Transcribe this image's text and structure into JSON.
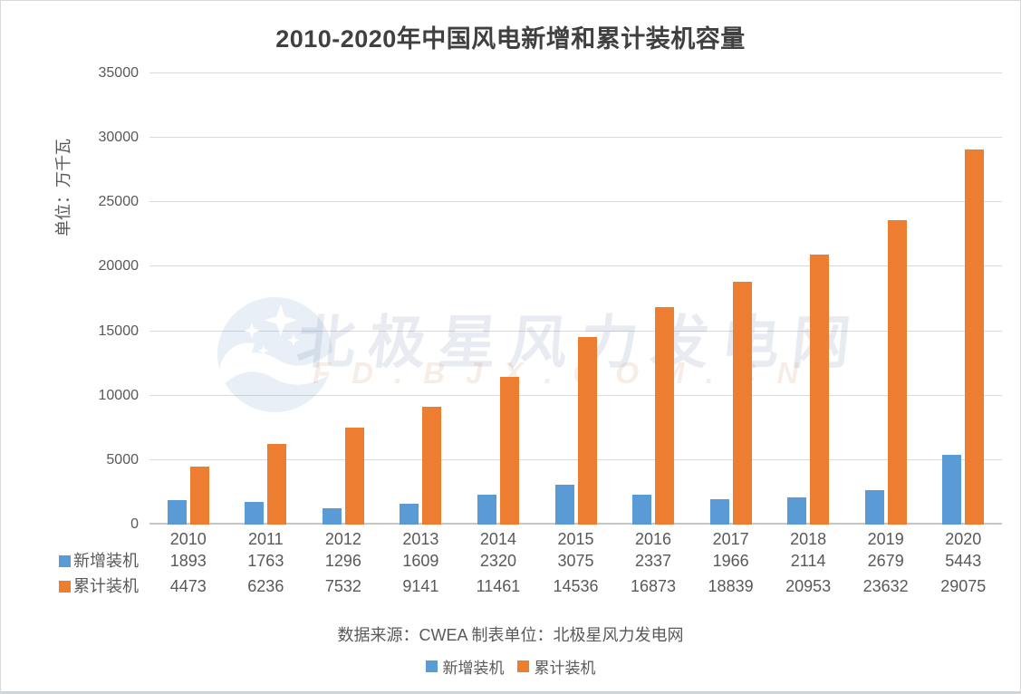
{
  "chart_data": {
    "type": "bar",
    "title": "2010-2020年中国风电新增和累计装机容量",
    "ylabel": "单位：万千瓦",
    "xlabel": "",
    "categories": [
      "2010",
      "2011",
      "2012",
      "2013",
      "2014",
      "2015",
      "2016",
      "2017",
      "2018",
      "2019",
      "2020"
    ],
    "series": [
      {
        "id": "new-installed",
        "name": "新增装机",
        "color": "#5B9BD5",
        "values": [
          1893,
          1763,
          1296,
          1609,
          2320,
          3075,
          2337,
          1966,
          2114,
          2679,
          5443
        ]
      },
      {
        "id": "cumulative-installed",
        "name": "累计装机",
        "color": "#ED7D31",
        "values": [
          4473,
          6236,
          7532,
          9141,
          11461,
          14536,
          16873,
          18839,
          20953,
          23632,
          29075
        ]
      }
    ],
    "ylim": [
      0,
      35000
    ],
    "yticks": [
      0,
      5000,
      10000,
      15000,
      20000,
      25000,
      30000,
      35000
    ],
    "grid": true,
    "legend_position": "bottom",
    "show_data_table": true
  },
  "footer": {
    "source": "数据来源：CWEA 制表单位：北极星风力发电网"
  },
  "watermark": {
    "brand": "北极星风力发电网",
    "domain": "FD.BJX.COM.CN",
    "icon": "bjx-moon-stars-logo"
  },
  "theme": {
    "title_color": "#404040",
    "axis_text_color": "#595959",
    "gridline_color": "#D9D9D9",
    "axis_line_color": "#C6C6C6",
    "bottom_edge_color": "#C7D5E3"
  }
}
